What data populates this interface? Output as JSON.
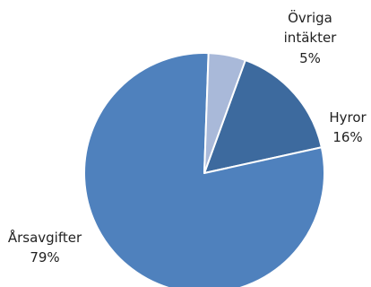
{
  "chart_data": {
    "type": "pie",
    "title": "",
    "start_angle_deg": 20,
    "direction": "clockwise",
    "slices": [
      {
        "label": "Hyror",
        "value": 16,
        "value_label": "16%",
        "color": "#3D6A9E"
      },
      {
        "label": "Årsavgifter",
        "value": 79,
        "value_label": "79%",
        "color": "#4F81BD"
      },
      {
        "label": "Övriga intäkter",
        "label_lines": [
          "Övriga",
          "intäkter"
        ],
        "value": 5,
        "value_label": "5%",
        "color": "#A9B9D9"
      }
    ]
  }
}
